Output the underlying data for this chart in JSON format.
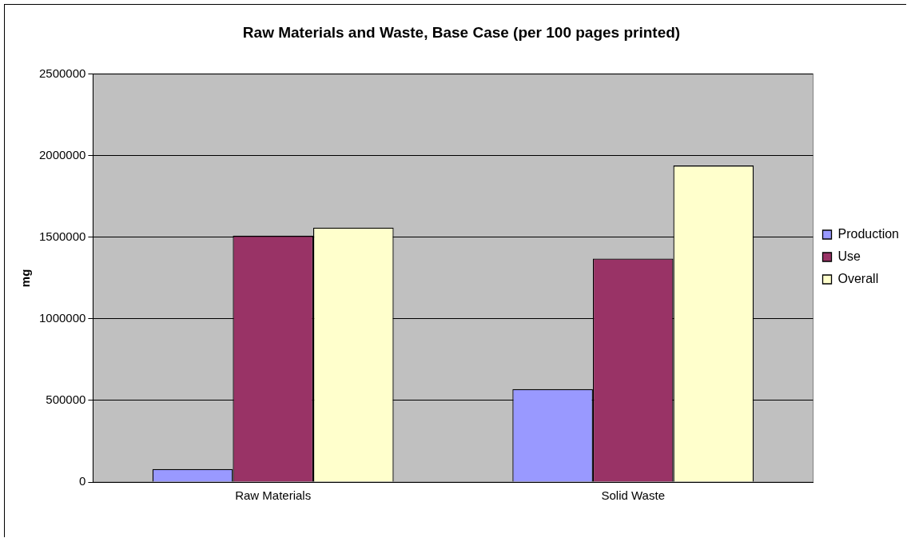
{
  "chart_data": {
    "type": "bar",
    "title": "Raw Materials and Waste, Base Case (per 100 pages printed)",
    "ylabel": "mg",
    "categories": [
      "Raw Materials",
      "Solid Waste"
    ],
    "series": [
      {
        "name": "Production",
        "color": "#9999ff",
        "values": [
          80000,
          570000
        ]
      },
      {
        "name": "Use",
        "color": "#993366",
        "values": [
          1510000,
          1370000
        ]
      },
      {
        "name": "Overall",
        "color": "#ffffcc",
        "values": [
          1560000,
          1940000
        ]
      }
    ],
    "ylim": [
      0,
      2500000
    ],
    "yticks": [
      0,
      500000,
      1000000,
      1500000,
      2000000,
      2500000
    ],
    "grid": "y",
    "legend": "right"
  }
}
